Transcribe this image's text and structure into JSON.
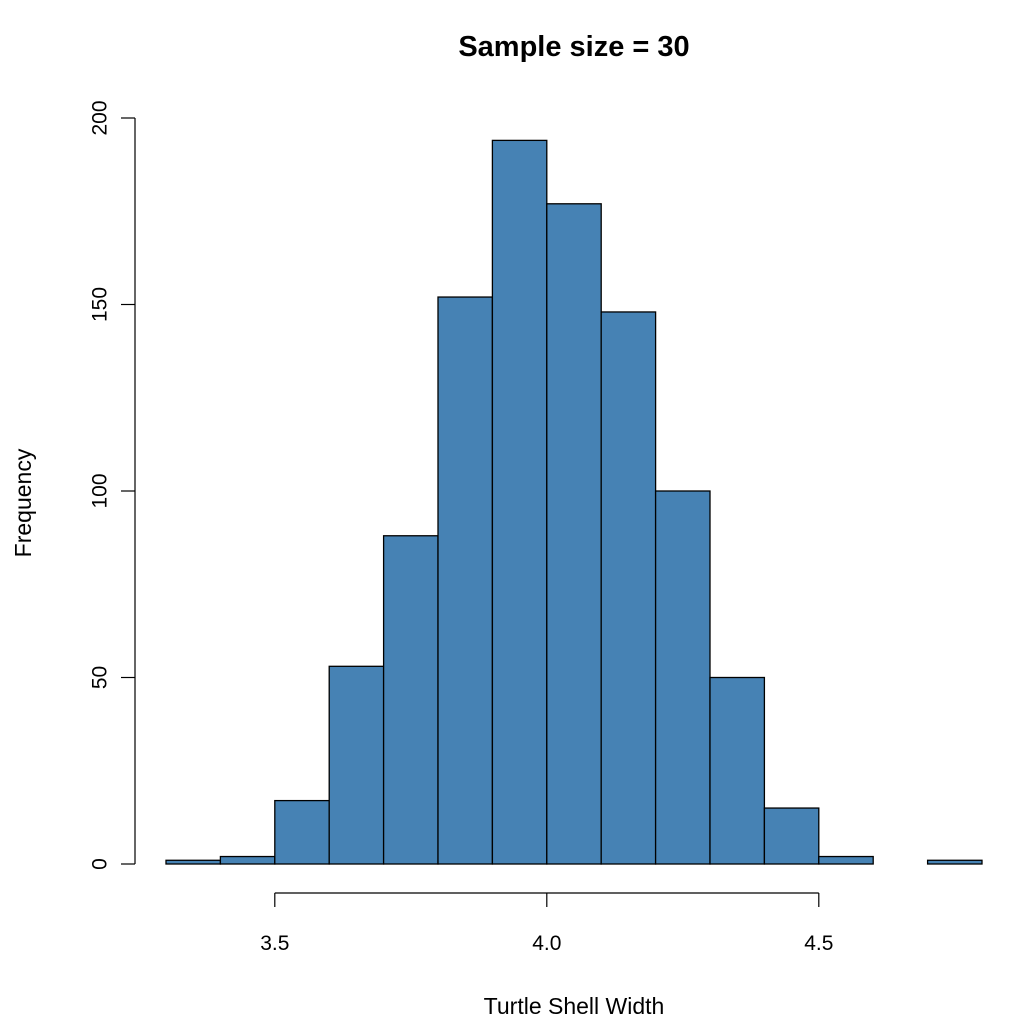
{
  "chart_data": {
    "type": "bar",
    "title": "Sample size = 30",
    "xlabel": "Turtle Shell Width",
    "ylabel": "Frequency",
    "bin_edges": [
      3.3,
      3.4,
      3.5,
      3.6,
      3.7,
      3.8,
      3.9,
      4.0,
      4.1,
      4.2,
      4.3,
      4.4,
      4.5,
      4.6,
      4.7,
      4.8
    ],
    "values": [
      1,
      2,
      17,
      53,
      88,
      152,
      194,
      177,
      148,
      100,
      50,
      15,
      2,
      0,
      1
    ],
    "xlim": [
      3.3,
      4.8
    ],
    "ylim": [
      0,
      200
    ],
    "x_ticks": [
      3.5,
      4.0,
      4.5
    ],
    "x_tick_labels": [
      "3.5",
      "4.0",
      "4.5"
    ],
    "y_ticks": [
      0,
      50,
      100,
      150,
      200
    ],
    "y_tick_labels": [
      "0",
      "50",
      "100",
      "150",
      "200"
    ],
    "bar_color": "#4682b4",
    "border_color": "#000000",
    "grid": false
  }
}
